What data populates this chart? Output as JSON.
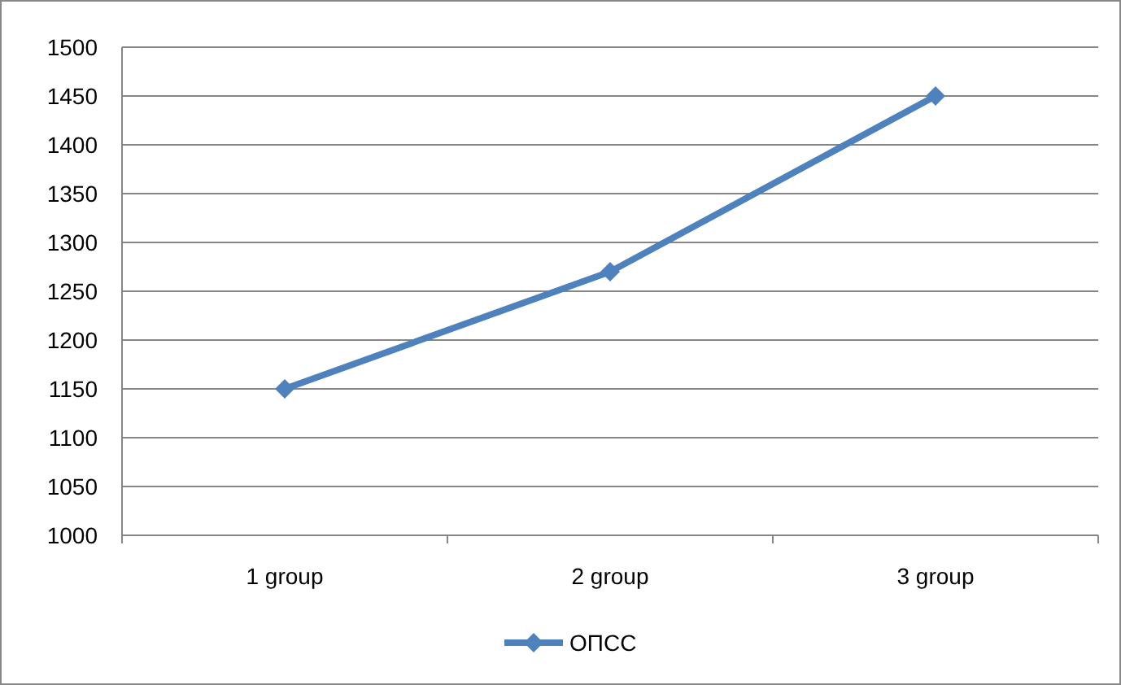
{
  "chart_data": {
    "type": "line",
    "categories": [
      "1 group",
      "2 group",
      "3 group"
    ],
    "series": [
      {
        "name": "ОПСС",
        "color": "#4f81bd",
        "values": [
          1150,
          1270,
          1450
        ]
      }
    ],
    "ylim": [
      1000,
      1500
    ],
    "yticks": [
      1000,
      1050,
      1100,
      1150,
      1200,
      1250,
      1300,
      1350,
      1400,
      1450,
      1500
    ],
    "grid": "y",
    "legend": "bottom",
    "marker": "diamond",
    "line_style": "solid"
  }
}
